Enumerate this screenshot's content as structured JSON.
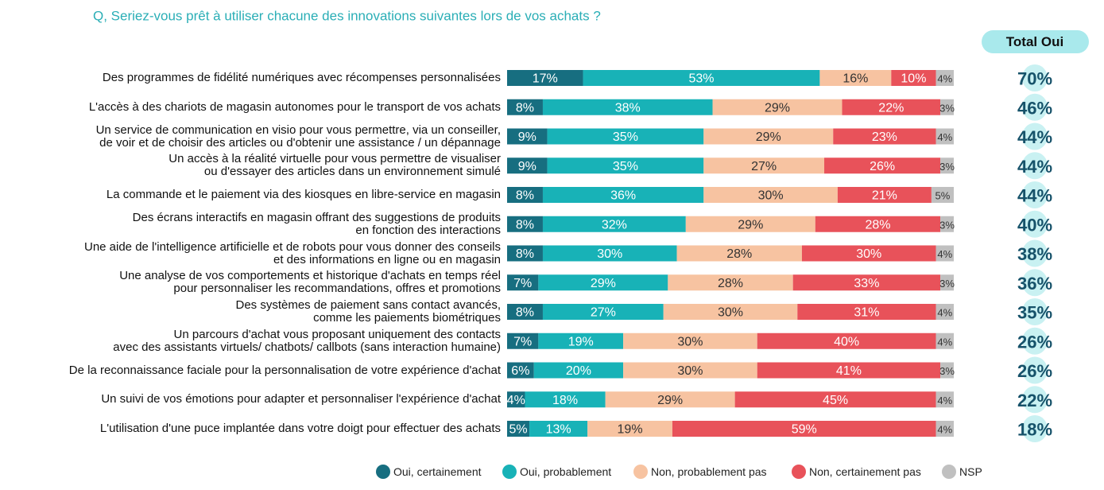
{
  "chart_data": {
    "type": "stacked-bar-horizontal",
    "title": "Q, Seriez-vous prêt à utiliser chacune des innovations suivantes lors de vos achats ?",
    "categories": [
      "Des programmes de fidélité numériques avec récompenses personnalisées",
      "L'accès à des chariots de magasin autonomes pour le transport de vos achats",
      "Un service de communication en visio pour vous permettre, via un conseiller,\nde voir et de choisir des articles ou d'obtenir une assistance / un dépannage",
      "Un accès à la réalité virtuelle pour vous permettre de visualiser\nou d'essayer des articles dans un environnement simulé",
      "La commande et le paiement via des kiosques en libre-service en magasin",
      "Des écrans interactifs en magasin offrant des suggestions de produits\nen fonction des interactions",
      "Une aide de l'intelligence artificielle et de robots pour vous donner des conseils\net des informations en ligne ou en magasin",
      "Une analyse de vos comportements et historique d'achats en temps réel\npour personnaliser les recommandations, offres et promotions",
      "Des systèmes de paiement sans contact avancés,\ncomme les paiements biométriques",
      "Un parcours d'achat vous proposant uniquement des contacts\navec des assistants virtuels/ chatbots/ callbots (sans interaction humaine)",
      "De la reconnaissance faciale pour la personnalisation de votre expérience d'achat",
      "Un suivi de vos émotions pour adapter et personnaliser l'expérience d'achat",
      "L'utilisation d'une puce implantée dans votre doigt pour effectuer des achats"
    ],
    "series": [
      {
        "name": "Oui, certainement",
        "color": "#176e80",
        "values": [
          17,
          8,
          9,
          9,
          8,
          8,
          8,
          7,
          8,
          7,
          6,
          4,
          5
        ],
        "value_labels": [
          "17%",
          "8%",
          "9%",
          "9%",
          "8%",
          "8%",
          "8%",
          "7%",
          "8%",
          "7%",
          "6%",
          "4%",
          "5%"
        ]
      },
      {
        "name": "Oui, probablement",
        "color": "#18b2b7",
        "values": [
          53,
          38,
          35,
          35,
          36,
          32,
          30,
          29,
          27,
          19,
          20,
          18,
          13
        ],
        "value_labels": [
          "53%",
          "38%",
          "35%",
          "35%",
          "36%",
          "32%",
          "30%",
          "29%",
          "27%",
          "19%",
          "20%",
          "18%",
          "13%"
        ]
      },
      {
        "name": "Non, probablement pas",
        "color": "#f7c3a1",
        "values": [
          16,
          29,
          29,
          27,
          30,
          29,
          28,
          28,
          30,
          30,
          30,
          29,
          19
        ],
        "value_labels": [
          "16%",
          "29%",
          "29%",
          "27%",
          "30%",
          "29%",
          "28%",
          "28%",
          "30%",
          "30%",
          "30%",
          "29%",
          "19%"
        ]
      },
      {
        "name": "Non, certainement pas",
        "color": "#e8525a",
        "values": [
          10,
          22,
          23,
          26,
          21,
          28,
          30,
          33,
          31,
          40,
          41,
          45,
          59
        ],
        "value_labels": [
          "10%",
          "22%",
          "23%",
          "26%",
          "21%",
          "28%",
          "30%",
          "33%",
          "31%",
          "40%",
          "41%",
          "45%",
          "59%"
        ]
      },
      {
        "name": "NSP",
        "color": "#c0c0c0",
        "values": [
          4,
          3,
          4,
          3,
          5,
          3,
          4,
          3,
          4,
          4,
          3,
          4,
          4
        ],
        "value_labels": [
          "4%",
          "3%",
          "4%",
          "3%",
          "5%",
          "3%",
          "4%",
          "3%",
          "4%",
          "4%",
          "3%",
          "4%",
          "4%"
        ]
      }
    ],
    "total": {
      "label": "Total Oui",
      "values": [
        70,
        46,
        44,
        44,
        44,
        40,
        38,
        36,
        35,
        26,
        26,
        22,
        18
      ],
      "value_labels": [
        "70%",
        "46%",
        "44%",
        "44%",
        "44%",
        "40%",
        "38%",
        "36%",
        "35%",
        "26%",
        "26%",
        "22%",
        "18%"
      ]
    }
  }
}
